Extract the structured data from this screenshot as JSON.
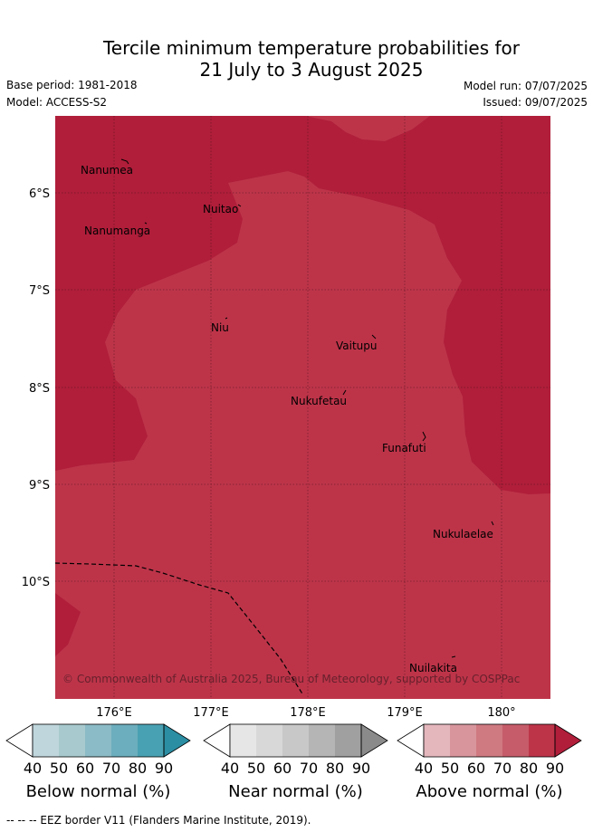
{
  "header": {
    "title_line1": "Tercile minimum temperature probabilities for",
    "title_line2": "21 July to 3 August 2025",
    "base_period": "Base period: 1981-2018",
    "model": "Model: ACCESS-S2",
    "model_run": "Model run: 07/07/2025",
    "issued": "Issued: 09/07/2025"
  },
  "map": {
    "lat_labels": [
      "6°S",
      "7°S",
      "8°S",
      "9°S",
      "10°S"
    ],
    "lon_labels": [
      "176°E",
      "177°E",
      "178°E",
      "179°E",
      "180°"
    ],
    "places": [
      "Nanumea",
      "Nuitao",
      "Nanumanga",
      "Niu",
      "Vaitupu",
      "Nukufetau",
      "Funafuti",
      "Nukulaelae",
      "Nuilakita"
    ],
    "copyright": "© Commonwealth of Australia 2025, Bureau of Meteorology, supported by COSPPac",
    "colors": {
      "above_80": "#b01e3a",
      "above_70": "#bd3449"
    }
  },
  "legend": {
    "ticks": [
      "40",
      "50",
      "60",
      "70",
      "80",
      "90"
    ],
    "below": {
      "label": "Below normal (%)",
      "colors": [
        "#ffffff",
        "#bed6dc",
        "#a8cace",
        "#8bbbc6",
        "#6caebd",
        "#48a1b2",
        "#2b8ea3"
      ]
    },
    "near": {
      "label": "Near normal (%)",
      "colors": [
        "#ffffff",
        "#e6e6e6",
        "#d8d8d8",
        "#c8c8c8",
        "#b5b5b5",
        "#a0a0a0",
        "#8a8a8a"
      ]
    },
    "above": {
      "label": "Above normal (%)",
      "colors": [
        "#ffffff",
        "#e4b7bd",
        "#d8959c",
        "#cf7980",
        "#c65c69",
        "#bd3449",
        "#b01e3a"
      ]
    }
  },
  "footer": {
    "eez_note": "-- -- -- EEZ border V11 (Flanders Marine Institute, 2019)."
  }
}
